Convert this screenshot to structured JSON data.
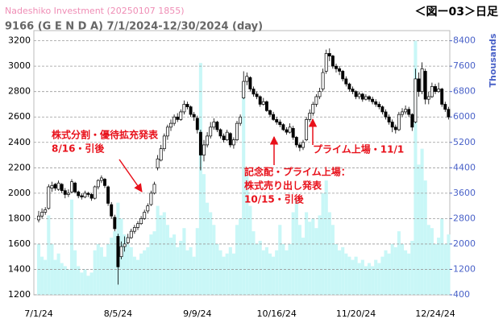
{
  "chart_data": {
    "type": "candlestick",
    "source": "Nadeshiko Investment  (20250107 1855)",
    "title": "9166 (G E N D A) 7/1/2024-12/30/2024 (day)",
    "figure_label": "＜図ー03＞日足",
    "y2_label": "Thousands",
    "categories": [
      "7/1/24",
      null,
      null,
      null,
      null,
      null,
      null,
      null,
      null,
      null,
      null,
      null,
      null,
      null,
      null,
      null,
      null,
      null,
      null,
      null,
      null,
      null,
      null,
      null,
      "8/5/24",
      null,
      null,
      null,
      null,
      null,
      null,
      null,
      null,
      null,
      null,
      null,
      null,
      null,
      null,
      null,
      null,
      null,
      null,
      null,
      null,
      null,
      null,
      null,
      "9/9/24",
      null,
      null,
      null,
      null,
      null,
      null,
      null,
      null,
      null,
      null,
      null,
      null,
      null,
      null,
      null,
      null,
      null,
      null,
      null,
      null,
      null,
      null,
      null,
      "10/16/24",
      null,
      null,
      null,
      null,
      null,
      null,
      null,
      null,
      null,
      null,
      null,
      null,
      null,
      null,
      null,
      null,
      null,
      null,
      null,
      null,
      null,
      null,
      null,
      "11/20/24",
      null,
      null,
      null,
      null,
      null,
      null,
      null,
      null,
      null,
      null,
      null,
      null,
      null,
      null,
      null,
      null,
      null,
      null,
      null,
      null,
      null,
      null,
      null,
      "12/24/24",
      null,
      null,
      null,
      null
    ],
    "open": [
      1790,
      1820,
      1850,
      1880,
      2040,
      2070,
      2030,
      2070,
      2020,
      1990,
      2010,
      2080,
      2010,
      1980,
      1970,
      2000,
      1990,
      1960,
      2050,
      2100,
      2110,
      2050,
      1910,
      1810,
      1660,
      1500,
      1580,
      1610,
      1650,
      1700,
      1730,
      1760,
      1800,
      1860,
      1910,
      2000,
      2200,
      2260,
      2350,
      2450,
      2520,
      2550,
      2600,
      2580,
      2640,
      2700,
      2680,
      2620,
      2590,
      2480,
      2300,
      2380,
      2450,
      2520,
      2560,
      2500,
      2450,
      2420,
      2470,
      2380,
      2420,
      2550,
      2750,
      2880,
      2910,
      2820,
      2780,
      2760,
      2700,
      2720,
      2650,
      2620,
      2580,
      2560,
      2540,
      2500,
      2480,
      2510,
      2440,
      2380,
      2360,
      2420,
      2580,
      2630,
      2700,
      2760,
      2820,
      2960,
      3100,
      3080,
      3000,
      2980,
      2960,
      2900,
      2860,
      2820,
      2800,
      2760,
      2780,
      2740,
      2760,
      2740,
      2720,
      2700,
      2680,
      2640,
      2600,
      2560,
      2520,
      2500,
      2620,
      2640,
      2660,
      2620,
      2560,
      2900,
      2800,
      2960,
      2740,
      2760,
      2840,
      2800,
      2820,
      2700,
      2660
    ],
    "high": [
      1860,
      1880,
      1890,
      2070,
      2090,
      2080,
      2100,
      2080,
      2040,
      2030,
      2110,
      2090,
      2020,
      2000,
      2020,
      2010,
      2000,
      2060,
      2110,
      2140,
      2120,
      2060,
      1930,
      1830,
      1680,
      1620,
      1660,
      1680,
      1720,
      1750,
      1780,
      1820,
      1870,
      1920,
      2020,
      2090,
      2300,
      2380,
      2470,
      2540,
      2580,
      2620,
      2630,
      2660,
      2730,
      2720,
      2690,
      2640,
      2610,
      2500,
      2420,
      2480,
      2560,
      2590,
      2570,
      2510,
      2470,
      2500,
      2480,
      2440,
      2570,
      2620,
      2960,
      2950,
      2920,
      2840,
      2800,
      2770,
      2750,
      2730,
      2660,
      2640,
      2600,
      2580,
      2550,
      2520,
      2550,
      2530,
      2450,
      2400,
      2420,
      2600,
      2660,
      2720,
      2780,
      2830,
      2980,
      3130,
      3140,
      3090,
      3020,
      3000,
      2970,
      2920,
      2870,
      2840,
      2810,
      2800,
      2790,
      2780,
      2770,
      2760,
      2740,
      2720,
      2690,
      2660,
      2620,
      2580,
      2540,
      2640,
      2670,
      2690,
      2680,
      2630,
      2980,
      2950,
      3030,
      2980,
      2800,
      2870,
      2860,
      2870,
      2830,
      2720,
      2680
    ],
    "low": [
      1770,
      1800,
      1830,
      1870,
      2010,
      2020,
      2020,
      2000,
      1960,
      1970,
      2000,
      2000,
      1960,
      1950,
      1960,
      1970,
      1940,
      1950,
      2030,
      2080,
      2040,
      1900,
      1800,
      1700,
      1280,
      1480,
      1540,
      1600,
      1640,
      1680,
      1710,
      1750,
      1790,
      1840,
      1900,
      1990,
      2180,
      2250,
      2330,
      2420,
      2490,
      2530,
      2560,
      2570,
      2620,
      2660,
      2600,
      2570,
      2470,
      2180,
      2250,
      2360,
      2430,
      2500,
      2480,
      2430,
      2400,
      2410,
      2360,
      2350,
      2410,
      2530,
      2740,
      2850,
      2800,
      2760,
      2740,
      2680,
      2690,
      2640,
      2600,
      2570,
      2540,
      2520,
      2490,
      2460,
      2470,
      2420,
      2360,
      2330,
      2340,
      2410,
      2560,
      2610,
      2680,
      2740,
      2800,
      2940,
      3040,
      2980,
      2950,
      2930,
      2880,
      2840,
      2800,
      2780,
      2740,
      2740,
      2720,
      2730,
      2720,
      2700,
      2680,
      2660,
      2620,
      2580,
      2540,
      2480,
      2470,
      2490,
      2600,
      2620,
      2600,
      2490,
      2550,
      2760,
      2780,
      2700,
      2700,
      2750,
      2780,
      2790,
      2680,
      2640,
      2580
    ],
    "close": [
      1820,
      1850,
      1870,
      2050,
      2060,
      2040,
      2080,
      2020,
      1990,
      2000,
      2090,
      2010,
      1980,
      1970,
      2000,
      1990,
      1960,
      2050,
      2100,
      2120,
      2060,
      1920,
      1820,
      1720,
      1420,
      1580,
      1600,
      1650,
      1700,
      1730,
      1760,
      1800,
      1850,
      1900,
      2000,
      2070,
      2270,
      2350,
      2450,
      2520,
      2550,
      2600,
      2580,
      2640,
      2700,
      2680,
      2620,
      2600,
      2500,
      2300,
      2380,
      2450,
      2520,
      2560,
      2500,
      2450,
      2420,
      2480,
      2380,
      2420,
      2550,
      2600,
      2880,
      2920,
      2820,
      2780,
      2760,
      2700,
      2720,
      2650,
      2620,
      2580,
      2560,
      2540,
      2500,
      2480,
      2520,
      2440,
      2380,
      2360,
      2400,
      2580,
      2630,
      2700,
      2760,
      2800,
      2950,
      3100,
      3080,
      3000,
      2980,
      2960,
      2900,
      2860,
      2820,
      2800,
      2760,
      2780,
      2740,
      2760,
      2740,
      2720,
      2700,
      2680,
      2640,
      2600,
      2560,
      2520,
      2500,
      2620,
      2640,
      2660,
      2620,
      2520,
      2900,
      2800,
      2980,
      2740,
      2760,
      2840,
      2800,
      2820,
      2700,
      2660,
      2600
    ],
    "volume": [
      2000,
      1600,
      1500,
      2900,
      2000,
      1500,
      1700,
      1400,
      1300,
      1200,
      3400,
      1800,
      1300,
      1100,
      1200,
      1000,
      1100,
      1800,
      2000,
      1900,
      1600,
      2000,
      2200,
      2400,
      3300,
      2800,
      2300,
      2000,
      1900,
      1600,
      1500,
      1700,
      1800,
      1900,
      2300,
      2400,
      3200,
      2900,
      3000,
      2600,
      2200,
      2300,
      1900,
      2100,
      2500,
      1800,
      1900,
      1600,
      2500,
      7700,
      4200,
      3300,
      3000,
      2600,
      2000,
      1800,
      1600,
      1700,
      1900,
      1700,
      2600,
      2800,
      7100,
      4200,
      3200,
      2400,
      2000,
      2100,
      1800,
      1900,
      1700,
      1600,
      1800,
      2600,
      2000,
      1800,
      2000,
      3000,
      3400,
      2600,
      2200,
      3000,
      2700,
      2800,
      2500,
      2900,
      3600,
      4000,
      3000,
      2600,
      2000,
      1800,
      1900,
      1700,
      1600,
      1500,
      1600,
      1400,
      1500,
      1300,
      1400,
      1300,
      1500,
      1400,
      1600,
      1800,
      1700,
      2000,
      1900,
      2400,
      2000,
      1800,
      1700,
      2100,
      8400,
      4500,
      5000,
      4000,
      2600,
      2500,
      2000,
      2200,
      2800,
      2000,
      2300
    ],
    "volume_axis": "y2",
    "up_color": "#ffffff",
    "down_color": "#000000",
    "volume_color": "#c9f7f7",
    "ylim": [
      1200,
      3280
    ],
    "yticks": [
      1200,
      1400,
      1600,
      1800,
      2000,
      2200,
      2400,
      2600,
      2800,
      3000,
      3200
    ],
    "y2lim": [
      400,
      8720
    ],
    "y2ticks": [
      400,
      1200,
      2000,
      2800,
      3600,
      4400,
      5200,
      6000,
      6800,
      7600,
      8400
    ],
    "grid": true,
    "annotations": [
      {
        "lines": [
          "株式分割・優待拡充発表",
          "8/16・引後"
        ]
      },
      {
        "lines": [
          "プライム上場・11/1"
        ]
      },
      {
        "lines": [
          "記念配・プライム上場：",
          "株式売り出し発表",
          "10/15・引後"
        ]
      }
    ]
  }
}
